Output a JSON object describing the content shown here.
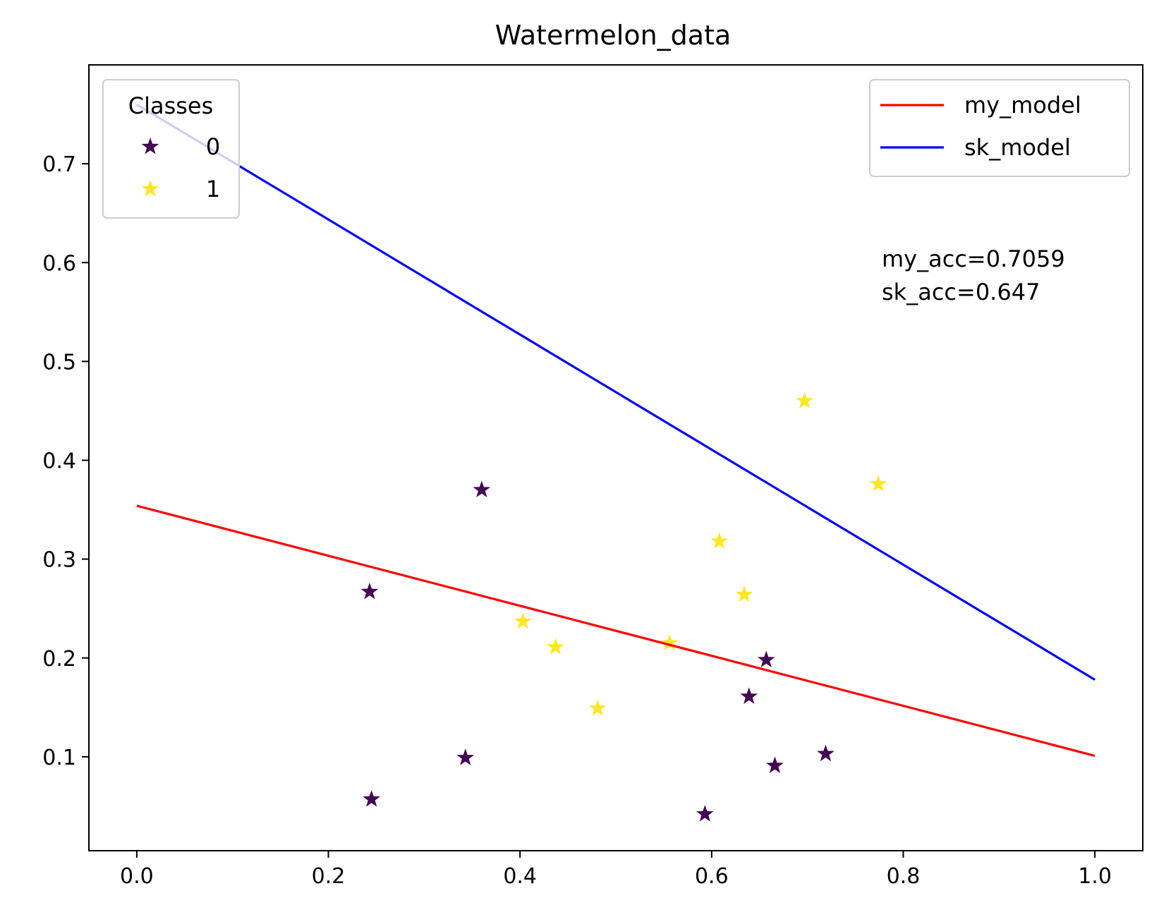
{
  "chart_data": {
    "type": "scatter",
    "title": "Watermelon_data",
    "xlabel": "",
    "ylabel": "",
    "xlim": [
      -0.05,
      1.05
    ],
    "ylim": [
      0.005,
      0.8
    ],
    "xticks": [
      "0.0",
      "0.2",
      "0.4",
      "0.6",
      "0.8",
      "1.0"
    ],
    "xtick_values": [
      0.0,
      0.2,
      0.4,
      0.6,
      0.8,
      1.0
    ],
    "yticks": [
      "0.1",
      "0.2",
      "0.3",
      "0.4",
      "0.5",
      "0.6",
      "0.7"
    ],
    "ytick_values": [
      0.1,
      0.2,
      0.3,
      0.4,
      0.5,
      0.6,
      0.7
    ],
    "grid": false,
    "scatter_series": [
      {
        "name": "0",
        "color": "#440154",
        "marker": "star",
        "points": [
          [
            0.36,
            0.37
          ],
          [
            0.243,
            0.267
          ],
          [
            0.245,
            0.057
          ],
          [
            0.343,
            0.099
          ],
          [
            0.593,
            0.042
          ],
          [
            0.657,
            0.198
          ],
          [
            0.639,
            0.161
          ],
          [
            0.666,
            0.091
          ],
          [
            0.719,
            0.103
          ]
        ]
      },
      {
        "name": "1",
        "color": "#fde725",
        "marker": "star",
        "points": [
          [
            0.697,
            0.46
          ],
          [
            0.774,
            0.376
          ],
          [
            0.608,
            0.318
          ],
          [
            0.634,
            0.264
          ],
          [
            0.403,
            0.237
          ],
          [
            0.437,
            0.211
          ],
          [
            0.481,
            0.149
          ],
          [
            0.556,
            0.215
          ]
        ]
      }
    ],
    "line_series": [
      {
        "name": "my_model",
        "color": "#ff0000",
        "points": [
          [
            0.0,
            0.354
          ],
          [
            1.0,
            0.101
          ]
        ]
      },
      {
        "name": "sk_model",
        "color": "#0000ff",
        "points": [
          [
            0.0,
            0.76
          ],
          [
            1.0,
            0.178
          ]
        ]
      }
    ],
    "legends": {
      "classes": {
        "title": "Classes",
        "placement": "upper-left",
        "entries": [
          "0",
          "1"
        ]
      },
      "models": {
        "placement": "upper-right",
        "entries": [
          "my_model",
          "sk_model"
        ]
      }
    },
    "annotations": [
      "my_acc=0.7059",
      "sk_acc=0.647"
    ]
  }
}
